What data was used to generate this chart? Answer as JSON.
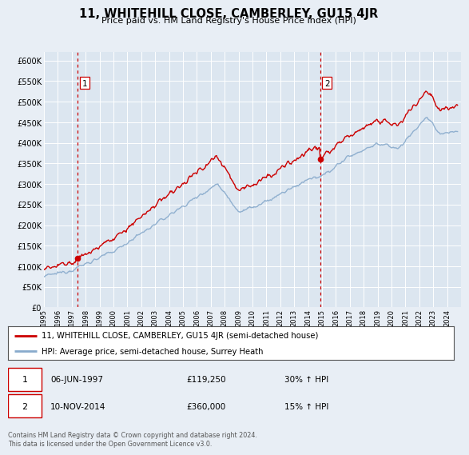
{
  "title": "11, WHITEHILL CLOSE, CAMBERLEY, GU15 4JR",
  "subtitle": "Price paid vs. HM Land Registry's House Price Index (HPI)",
  "background_color": "#e8eef5",
  "plot_bg_color": "#dce6f0",
  "ylim": [
    0,
    620000
  ],
  "yticks": [
    0,
    50000,
    100000,
    150000,
    200000,
    250000,
    300000,
    350000,
    400000,
    450000,
    500000,
    550000,
    600000
  ],
  "xlim_start": 1995.0,
  "xlim_end": 2025.0,
  "sale1_date": 1997.43,
  "sale1_price": 119250,
  "sale2_date": 2014.86,
  "sale2_price": 360000,
  "legend_line1": "11, WHITEHILL CLOSE, CAMBERLEY, GU15 4JR (semi-detached house)",
  "legend_line2": "HPI: Average price, semi-detached house, Surrey Heath",
  "annotation1_date": "06-JUN-1997",
  "annotation1_price": "£119,250",
  "annotation1_hpi": "30% ↑ HPI",
  "annotation2_date": "10-NOV-2014",
  "annotation2_price": "£360,000",
  "annotation2_hpi": "15% ↑ HPI",
  "line_color_red": "#cc0000",
  "line_color_blue": "#88aacc",
  "dot_color": "#cc0000",
  "vline_color": "#cc0000",
  "copyright_text": "Contains HM Land Registry data © Crown copyright and database right 2024.\nThis data is licensed under the Open Government Licence v3.0.",
  "xtick_years": [
    1995,
    1996,
    1997,
    1998,
    1999,
    2000,
    2001,
    2002,
    2003,
    2004,
    2005,
    2006,
    2007,
    2008,
    2009,
    2010,
    2011,
    2012,
    2013,
    2014,
    2015,
    2016,
    2017,
    2018,
    2019,
    2020,
    2021,
    2022,
    2023,
    2024
  ]
}
